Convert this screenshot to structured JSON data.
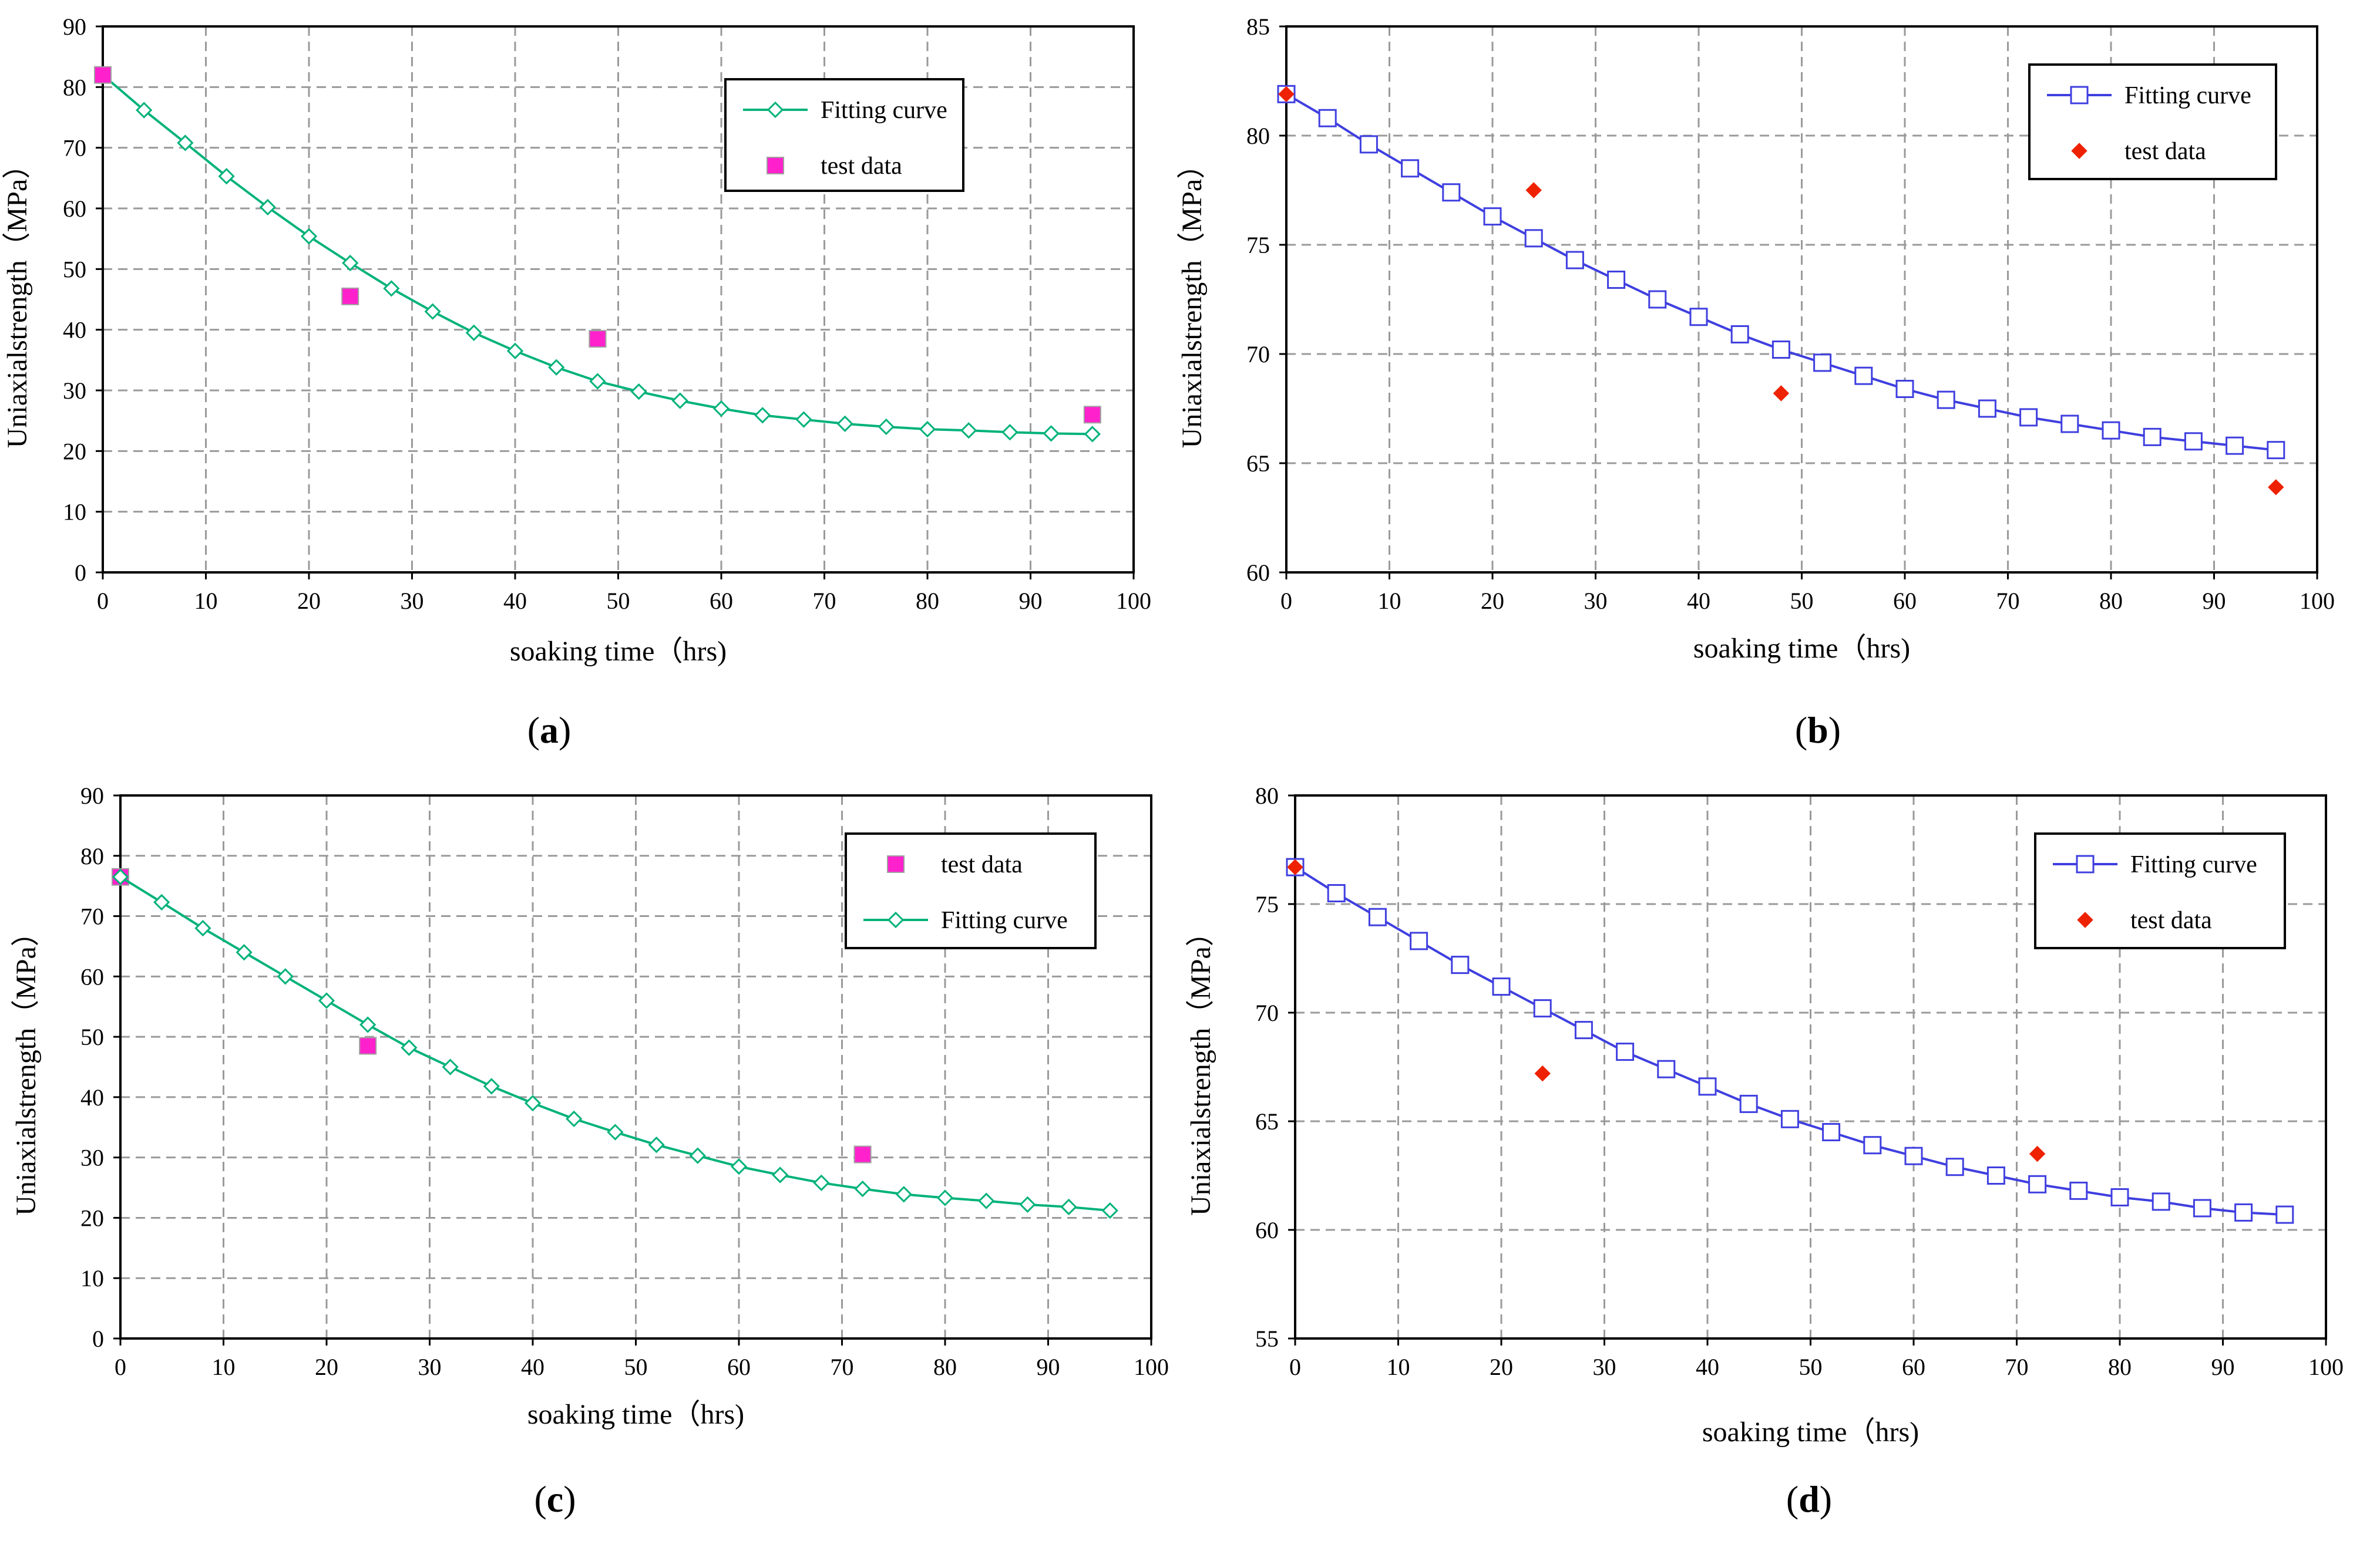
{
  "figure": {
    "background": "#ffffff",
    "fitting_color_green": "#00b27a",
    "fitting_color_blue": "#3f3fe0",
    "test_color_magenta": "#ff22cc",
    "test_color_red": "#ee2200"
  },
  "chart_data": [
    {
      "id": "a",
      "caption": "a",
      "type": "line",
      "xlabel": "soaking time（hrs)",
      "ylabel": "Uniaxialstrength（MPa）",
      "xlim": [
        0,
        100
      ],
      "ylim": [
        0,
        90
      ],
      "xticks": [
        "0",
        "10",
        "20",
        "30",
        "40",
        "50",
        "60",
        "70",
        "80",
        "90",
        "100"
      ],
      "yticks": [
        "0",
        "10",
        "20",
        "30",
        "40",
        "50",
        "60",
        "70",
        "80",
        "90"
      ],
      "grid": true,
      "legend_position": "top-right",
      "series": [
        {
          "name": "Fitting curve",
          "kind": "line-marker",
          "marker": "diamond",
          "color": "#00b27a",
          "x": [
            0,
            4,
            8,
            12,
            16,
            20,
            24,
            28,
            32,
            36,
            40,
            44,
            48,
            52,
            56,
            60,
            64,
            68,
            72,
            76,
            80,
            84,
            88,
            92,
            96
          ],
          "y": [
            82,
            76.2,
            70.8,
            65.3,
            60.2,
            55.4,
            51,
            46.8,
            43,
            39.5,
            36.5,
            33.8,
            31.5,
            29.8,
            28.3,
            27,
            25.9,
            25.2,
            24.5,
            24,
            23.6,
            23.4,
            23.1,
            22.9,
            22.8
          ]
        },
        {
          "name": "test data",
          "kind": "scatter",
          "marker": "square",
          "color": "#ff22cc",
          "x": [
            0,
            24,
            48,
            96
          ],
          "y": [
            82,
            45.5,
            38.5,
            26
          ]
        }
      ]
    },
    {
      "id": "b",
      "caption": "b",
      "type": "line",
      "xlabel": "soaking time（hrs)",
      "ylabel": "Uniaxialstrength（MPa）",
      "xlim": [
        0,
        100
      ],
      "ylim": [
        60,
        85
      ],
      "xticks": [
        "0",
        "10",
        "20",
        "30",
        "40",
        "50",
        "60",
        "70",
        "80",
        "90",
        "100"
      ],
      "yticks": [
        "60",
        "65",
        "70",
        "75",
        "80",
        "85"
      ],
      "grid": true,
      "legend_position": "top-right",
      "series": [
        {
          "name": "Fitting curve",
          "kind": "line-marker",
          "marker": "square-open",
          "color": "#3f3fe0",
          "x": [
            0,
            4,
            8,
            12,
            16,
            20,
            24,
            28,
            32,
            36,
            40,
            44,
            48,
            52,
            56,
            60,
            64,
            68,
            72,
            76,
            80,
            84,
            88,
            92,
            96
          ],
          "y": [
            81.9,
            80.8,
            79.6,
            78.5,
            77.4,
            76.3,
            75.3,
            74.3,
            73.4,
            72.5,
            71.7,
            70.9,
            70.2,
            69.6,
            69,
            68.4,
            67.9,
            67.5,
            67.1,
            66.8,
            66.5,
            66.2,
            66,
            65.8,
            65.6
          ]
        },
        {
          "name": "test data",
          "kind": "scatter",
          "marker": "diamond",
          "color": "#ee2200",
          "x": [
            0,
            24,
            48,
            96
          ],
          "y": [
            81.9,
            77.5,
            68.2,
            63.9
          ]
        }
      ]
    },
    {
      "id": "c",
      "caption": "c",
      "type": "line",
      "xlabel": "soaking time（hrs)",
      "ylabel": "Uniaxialstrength（MPa）",
      "xlim": [
        0,
        100
      ],
      "ylim": [
        0,
        90
      ],
      "xticks": [
        "0",
        "10",
        "20",
        "30",
        "40",
        "50",
        "60",
        "70",
        "80",
        "90",
        "100"
      ],
      "yticks": [
        "0",
        "10",
        "20",
        "30",
        "40",
        "50",
        "60",
        "70",
        "80",
        "90"
      ],
      "grid": true,
      "legend_position": "top-right",
      "series": [
        {
          "name": "test data",
          "kind": "scatter",
          "marker": "square",
          "color": "#ff22cc",
          "x": [
            0,
            24,
            72
          ],
          "y": [
            76.5,
            48.5,
            30.5
          ]
        },
        {
          "name": "Fitting curve",
          "kind": "line-marker",
          "marker": "diamond",
          "color": "#00b27a",
          "x": [
            0,
            4,
            8,
            12,
            16,
            20,
            24,
            28,
            32,
            36,
            40,
            44,
            48,
            52,
            56,
            60,
            64,
            68,
            72,
            76,
            80,
            84,
            88,
            92,
            96
          ],
          "y": [
            76.5,
            72.3,
            68,
            64,
            60,
            56,
            52,
            48.2,
            45,
            41.8,
            39,
            36.4,
            34.2,
            32.1,
            30.3,
            28.5,
            27.1,
            25.8,
            24.8,
            23.9,
            23.3,
            22.8,
            22.2,
            21.8,
            21.2
          ]
        }
      ]
    },
    {
      "id": "d",
      "caption": "d",
      "type": "line",
      "xlabel": "soaking time（hrs)",
      "ylabel": "Uniaxialstrength（MPa）",
      "xlim": [
        0,
        100
      ],
      "ylim": [
        55,
        80
      ],
      "xticks": [
        "0",
        "10",
        "20",
        "30",
        "40",
        "50",
        "60",
        "70",
        "80",
        "90",
        "100"
      ],
      "yticks": [
        "55",
        "60",
        "65",
        "70",
        "75",
        "80"
      ],
      "grid": true,
      "legend_position": "top-right",
      "series": [
        {
          "name": "Fitting curve",
          "kind": "line-marker",
          "marker": "square-open",
          "color": "#3f3fe0",
          "x": [
            0,
            4,
            8,
            12,
            16,
            20,
            24,
            28,
            32,
            36,
            40,
            44,
            48,
            52,
            56,
            60,
            64,
            68,
            72,
            76,
            80,
            84,
            88,
            92,
            96
          ],
          "y": [
            76.7,
            75.5,
            74.4,
            73.3,
            72.2,
            71.2,
            70.2,
            69.2,
            68.2,
            67.4,
            66.6,
            65.8,
            65.1,
            64.5,
            63.9,
            63.4,
            62.9,
            62.5,
            62.1,
            61.8,
            61.5,
            61.3,
            61,
            60.8,
            60.7
          ]
        },
        {
          "name": "test data",
          "kind": "scatter",
          "marker": "diamond",
          "color": "#ee2200",
          "x": [
            0,
            24,
            72
          ],
          "y": [
            76.7,
            67.2,
            63.5
          ]
        }
      ]
    }
  ]
}
